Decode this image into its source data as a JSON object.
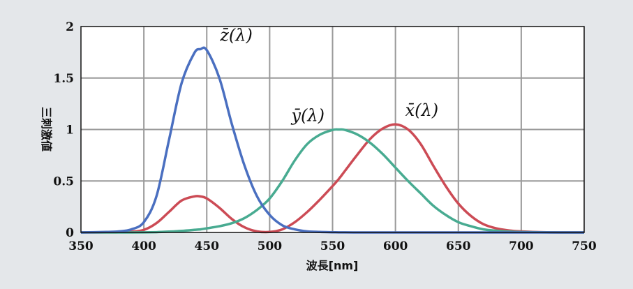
{
  "chart_data": {
    "type": "line",
    "title": "",
    "xlabel": "波長[nm]",
    "ylabel": "三刺激値",
    "xlim": [
      350,
      750
    ],
    "ylim": [
      0,
      2
    ],
    "xticks": [
      "350",
      "400",
      "450",
      "500",
      "550",
      "600",
      "650",
      "700",
      "750"
    ],
    "yticks": [
      "0",
      "0.5",
      "1",
      "1.5",
      "2"
    ],
    "grid": true,
    "legend": "none",
    "x": [
      350,
      370,
      380,
      390,
      400,
      410,
      420,
      430,
      440,
      445,
      450,
      460,
      470,
      480,
      490,
      500,
      510,
      520,
      530,
      540,
      550,
      555,
      560,
      570,
      580,
      590,
      600,
      610,
      620,
      630,
      640,
      650,
      660,
      670,
      680,
      690,
      700,
      720,
      750
    ],
    "series": [
      {
        "name": "x̄(λ)",
        "label": "x̄(λ)",
        "color": "#cc4b55",
        "values": [
          0,
          0.001,
          0.002,
          0.007,
          0.025,
          0.09,
          0.2,
          0.31,
          0.35,
          0.35,
          0.33,
          0.24,
          0.13,
          0.05,
          0.01,
          0.005,
          0.03,
          0.1,
          0.2,
          0.32,
          0.45,
          0.52,
          0.6,
          0.76,
          0.91,
          1.01,
          1.05,
          1.0,
          0.86,
          0.65,
          0.45,
          0.28,
          0.16,
          0.08,
          0.04,
          0.02,
          0.01,
          0.002,
          0
        ]
      },
      {
        "name": "ȳ(λ)",
        "label": "ȳ(λ)",
        "color": "#48ab91",
        "values": [
          0,
          0,
          0.0001,
          0.0002,
          0.001,
          0.003,
          0.008,
          0.015,
          0.025,
          0.03,
          0.04,
          0.06,
          0.09,
          0.14,
          0.22,
          0.33,
          0.5,
          0.7,
          0.86,
          0.95,
          0.995,
          1.0,
          0.995,
          0.95,
          0.87,
          0.76,
          0.63,
          0.5,
          0.38,
          0.26,
          0.17,
          0.1,
          0.06,
          0.03,
          0.017,
          0.008,
          0.004,
          0.001,
          0
        ]
      },
      {
        "name": "z̄(λ)",
        "label": "z̄(λ)",
        "color": "#4a6fc0",
        "values": [
          0,
          0.005,
          0.01,
          0.03,
          0.1,
          0.35,
          0.9,
          1.45,
          1.74,
          1.78,
          1.77,
          1.5,
          1.05,
          0.65,
          0.35,
          0.17,
          0.07,
          0.03,
          0.01,
          0.005,
          0.002,
          0.001,
          0.001,
          0,
          0,
          0,
          0,
          0,
          0,
          0,
          0,
          0,
          0,
          0,
          0,
          0,
          0,
          0,
          0
        ]
      }
    ]
  }
}
